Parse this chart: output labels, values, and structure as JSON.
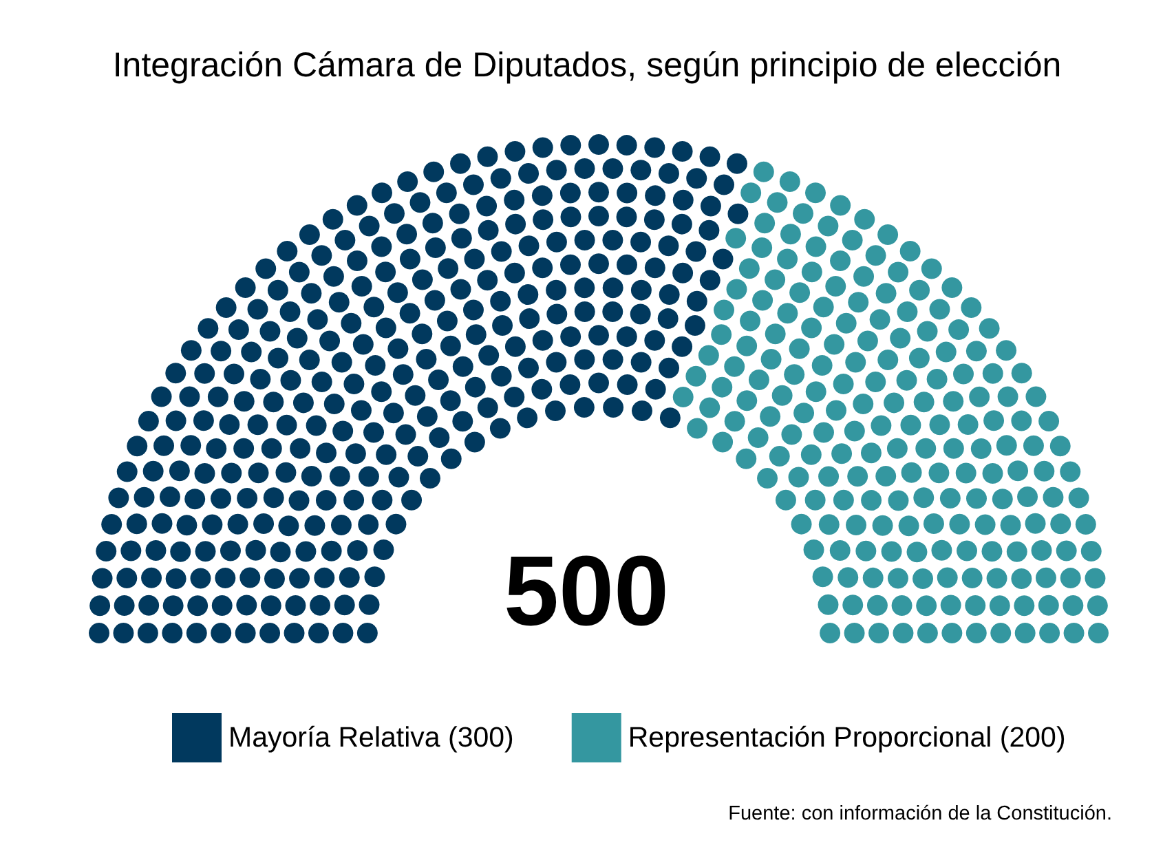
{
  "chart_data": {
    "type": "other",
    "title": "Integración Cámara de Diputados, según principio de elección",
    "series": [
      {
        "name": "Mayoría Relativa",
        "color": "#01395e",
        "values": [
          300
        ],
        "value_labels": [
          "(300)"
        ]
      },
      {
        "name": "Representación Proporcional",
        "color": "#3497a0",
        "values": [
          200
        ],
        "value_labels": [
          "(200)"
        ]
      }
    ],
    "totals": [
      "500"
    ],
    "legend": "bottom",
    "annotations": [
      "Fuente: con información de la Constitución."
    ]
  }
}
